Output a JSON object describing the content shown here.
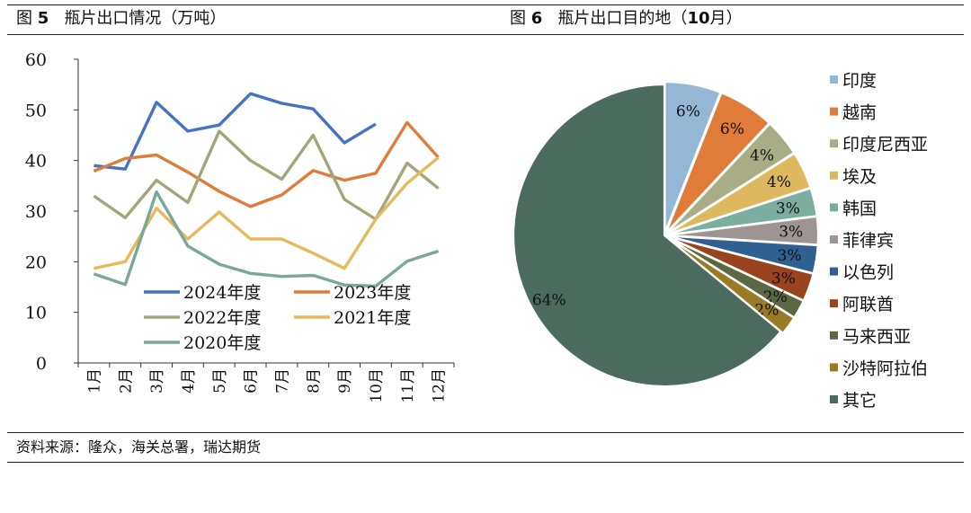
{
  "figures": {
    "left": {
      "label_prefix": "图",
      "label_num": "5",
      "caption": "瓶片出口情况（万吨）"
    },
    "right": {
      "label_prefix": "图",
      "label_num": "6",
      "caption": "瓶片出口目的地（",
      "caption_num": "10",
      "caption_end": "月）"
    }
  },
  "source": "资料来源：隆众，海关总署，瑞达期货",
  "chart_data": [
    {
      "type": "line",
      "title": "",
      "categories": [
        "1月",
        "2月",
        "3月",
        "4月",
        "5月",
        "6月",
        "7月",
        "8月",
        "9月",
        "10月",
        "11月",
        "12月"
      ],
      "ylim": [
        0,
        60
      ],
      "yticks": [
        0,
        10,
        20,
        30,
        40,
        50,
        60
      ],
      "grid": false,
      "legend": "center-bottom",
      "series": [
        {
          "name": "2024年度",
          "color": "#4472C4",
          "values": [
            39,
            38.3,
            51.5,
            45.8,
            47,
            53.2,
            51.3,
            50.2,
            43.5,
            47.2,
            null,
            null
          ]
        },
        {
          "name": "2023年度",
          "color": "#E07B39",
          "values": [
            37.9,
            40.4,
            41.1,
            37.7,
            33.9,
            30.9,
            33.2,
            38,
            36.1,
            37.5,
            47.5,
            40.6
          ]
        },
        {
          "name": "2022年度",
          "color": "#A5A57A",
          "values": [
            33,
            28.7,
            36.1,
            31.7,
            45.8,
            40,
            36.3,
            45,
            32.3,
            28.4,
            39.5,
            34.5
          ]
        },
        {
          "name": "2021年度",
          "color": "#E6B95A",
          "values": [
            18.7,
            20,
            30.6,
            24.5,
            29.8,
            24.5,
            24.5,
            21.7,
            18.7,
            28.4,
            35.5,
            40.6
          ]
        },
        {
          "name": "2020年度",
          "color": "#79A89A",
          "values": [
            17.6,
            15.5,
            33.8,
            23.1,
            19.5,
            17.7,
            17.1,
            17.3,
            15.4,
            15.2,
            20.1,
            22.1
          ]
        }
      ]
    },
    {
      "type": "pie",
      "title": "",
      "legend": "right",
      "slices": [
        {
          "name": "印度",
          "value": 6,
          "label": "6%",
          "color": "#95B7D6"
        },
        {
          "name": "越南",
          "value": 6,
          "label": "6%",
          "color": "#E07B39"
        },
        {
          "name": "印度尼西亚",
          "value": 4,
          "label": "4%",
          "color": "#A8AD86"
        },
        {
          "name": "埃及",
          "value": 4,
          "label": "4%",
          "color": "#DDB85E"
        },
        {
          "name": "韩国",
          "value": 3,
          "label": "3%",
          "color": "#7BAE9E"
        },
        {
          "name": "菲律宾",
          "value": 3,
          "label": "3%",
          "color": "#9E9494"
        },
        {
          "name": "以色列",
          "value": 3,
          "label": "3%",
          "color": "#2F6090"
        },
        {
          "name": "阿联酋",
          "value": 3,
          "label": "3%",
          "color": "#99441F"
        },
        {
          "name": "马来西亚",
          "value": 2,
          "label": "2%",
          "color": "#5C6844"
        },
        {
          "name": "沙特阿拉伯",
          "value": 2,
          "label": "2%",
          "color": "#997A26"
        },
        {
          "name": "其它",
          "value": 64,
          "label": "64%",
          "color": "#4A6B5E"
        }
      ]
    }
  ]
}
